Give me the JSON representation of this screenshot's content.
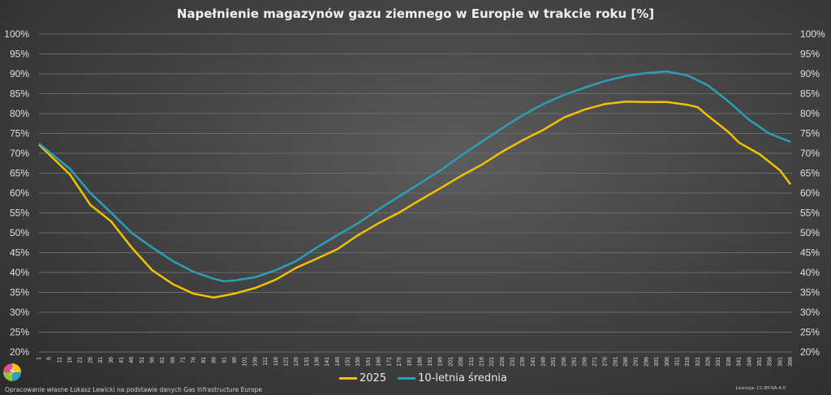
{
  "chart_data": {
    "type": "line",
    "title": "Napełnienie magazynów gazu ziemnego w Europie w trakcie roku [%]",
    "xlabel": "",
    "ylabel": "",
    "xlim": [
      1,
      366
    ],
    "ylim": [
      20,
      100
    ],
    "y_ticks": [
      "20%",
      "25%",
      "30%",
      "35%",
      "40%",
      "45%",
      "50%",
      "55%",
      "60%",
      "65%",
      "70%",
      "75%",
      "80%",
      "85%",
      "90%",
      "95%",
      "100%"
    ],
    "x_ticks": [
      1,
      6,
      11,
      16,
      21,
      26,
      31,
      36,
      41,
      46,
      51,
      56,
      61,
      66,
      71,
      76,
      81,
      86,
      91,
      96,
      101,
      106,
      111,
      116,
      121,
      126,
      131,
      136,
      141,
      146,
      151,
      156,
      161,
      166,
      171,
      176,
      181,
      186,
      191,
      196,
      201,
      206,
      211,
      216,
      221,
      226,
      231,
      236,
      241,
      246,
      251,
      256,
      261,
      266,
      271,
      276,
      281,
      286,
      291,
      296,
      301,
      306,
      311,
      316,
      321,
      326,
      331,
      336,
      341,
      346,
      351,
      356,
      361,
      366
    ],
    "grid": true,
    "legend_position": "bottom",
    "series": [
      {
        "name": "2025",
        "color": "#f2c200",
        "x": [
          1,
          16,
          26,
          36,
          46,
          56,
          66,
          76,
          86,
          96,
          106,
          116,
          126,
          136,
          146,
          156,
          166,
          176,
          186,
          196,
          206,
          216,
          226,
          236,
          246,
          256,
          266,
          276,
          286,
          296,
          306,
          316,
          321,
          326,
          336,
          341,
          351,
          361,
          366
        ],
        "y": [
          72.2,
          64.7,
          57,
          52.9,
          46.3,
          40.6,
          37.1,
          34.7,
          33.7,
          34.7,
          36.1,
          38.2,
          41.2,
          43.5,
          45.9,
          49.4,
          52.4,
          55.1,
          58.2,
          61.2,
          64.3,
          67.1,
          70.4,
          73.3,
          75.9,
          79,
          81,
          82.4,
          83,
          82.9,
          82.9,
          82.2,
          81.6,
          79.4,
          75.3,
          72.7,
          69.8,
          65.7,
          62.2
        ]
      },
      {
        "name": "10-letnia średnia",
        "color": "#2c9fb8",
        "x": [
          1,
          16,
          26,
          36,
          46,
          56,
          66,
          76,
          86,
          91,
          96,
          106,
          116,
          126,
          136,
          146,
          156,
          166,
          176,
          186,
          196,
          206,
          216,
          226,
          236,
          246,
          256,
          266,
          276,
          286,
          296,
          306,
          316,
          326,
          336,
          346,
          356,
          366
        ],
        "y": [
          72.5,
          66.1,
          60,
          55.1,
          50,
          46.3,
          42.9,
          40.2,
          38.4,
          37.8,
          38,
          38.8,
          40.6,
          42.9,
          46.3,
          49.4,
          52.4,
          55.9,
          59.2,
          62.4,
          65.7,
          69.4,
          72.9,
          76.3,
          79.6,
          82.4,
          84.7,
          86.5,
          88.2,
          89.4,
          90.2,
          90.6,
          89.6,
          87.1,
          83,
          78.4,
          74.9,
          72.9
        ]
      }
    ]
  },
  "footer": {
    "source": "Opracowanie własne Łukasz Lewicki na podstawie danych Gas Infrastructure Europe",
    "license": "Licencja: CC-BY-SA 4.0"
  },
  "logo_icon": "lightning-bolt-logo"
}
